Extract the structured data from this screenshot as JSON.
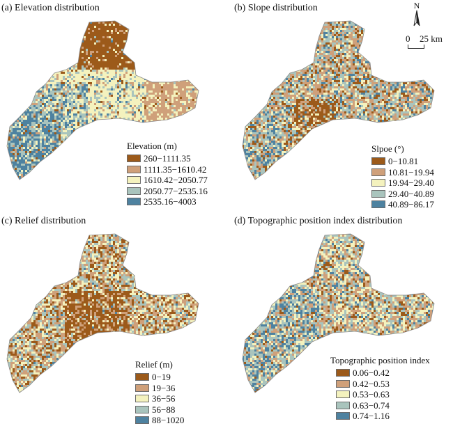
{
  "panels": [
    {
      "title": "(a) Elevation distribution",
      "legend_title": "Elevation (m)",
      "classes": [
        "260−1111.35",
        "1111.35−1610.42",
        "1610.42−2050.77",
        "2050.77−2535.16",
        "2535.16−4003"
      ],
      "colors": [
        "#9c5a1a",
        "#cfa07a",
        "#f4f2be",
        "#a9c4bd",
        "#4e82a0"
      ]
    },
    {
      "title": "(b) Slope distribution",
      "legend_title": "Slpoe (°)",
      "classes": [
        "0−10.81",
        "10.81−19.94",
        "19.94−29.40",
        "29.40−40.89",
        "40.89−86.17"
      ],
      "colors": [
        "#9c5a1a",
        "#cfa07a",
        "#f4f2be",
        "#a9c4bd",
        "#4e82a0"
      ]
    },
    {
      "title": "(c) Relief distribution",
      "legend_title": "Relief (m)",
      "classes": [
        "0−19",
        "19−36",
        "36−56",
        "56−88",
        "88−1020"
      ],
      "colors": [
        "#9c5a1a",
        "#cfa07a",
        "#f4f2be",
        "#a9c4bd",
        "#4e82a0"
      ]
    },
    {
      "title": "(d) Topographic position index distribution",
      "legend_title": "Topographic position index",
      "classes": [
        "0.06−0.42",
        "0.42−0.53",
        "0.53−0.63",
        "0.63−0.74",
        "0.74−1.16"
      ],
      "colors": [
        "#9c5a1a",
        "#cfa07a",
        "#f4f2be",
        "#a9c4bd",
        "#4e82a0"
      ]
    }
  ],
  "north_arrow": {
    "letter": "N"
  },
  "scale_bar": {
    "zero": "0",
    "distance": "25 km"
  }
}
